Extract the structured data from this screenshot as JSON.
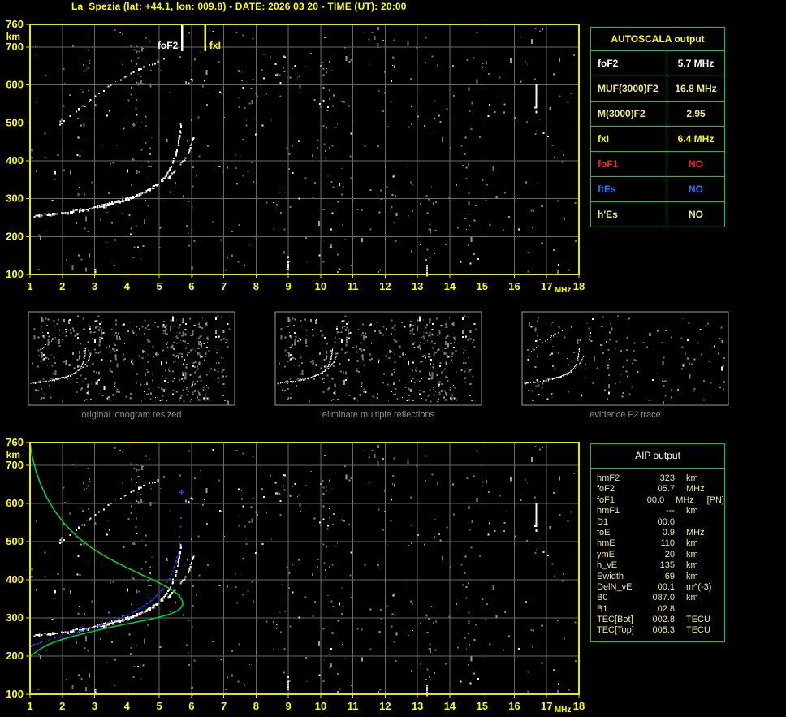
{
  "title": "La_Spezia (lat: +44.1, lon: 009.8) - DATE: 2026 03 20 - TIME (UT): 20:00",
  "colors": {
    "white": "#ffffff",
    "khaki": "#f0ea8e",
    "yellow": "#ffff00",
    "red": "#ff2222",
    "blue": "#2277ff",
    "frame_yellow": "#e8e800",
    "grid_gray": "#6a6a6a",
    "table_green": "#00cc44",
    "caption_gray": "#8f8f8f",
    "trace_white": "#ffffff",
    "profile_green": "#00cc33",
    "restored_blue": "#2a3cff"
  },
  "autoscala": {
    "header": "AUTOSCALA output",
    "rows": [
      {
        "label": "foF2",
        "value": "5.7 MHz",
        "color": "white"
      },
      {
        "label": "MUF(3000)F2",
        "value": "16.8 MHz",
        "color": "khaki"
      },
      {
        "label": "M(3000)F2",
        "value": "2.95",
        "color": "khaki"
      },
      {
        "label": "fxI",
        "value": "6.4 MHz",
        "color": "yellow"
      },
      {
        "label": "foF1",
        "value": "NO",
        "color": "red"
      },
      {
        "label": "ftEs",
        "value": "NO",
        "color": "blue"
      },
      {
        "label": "h'Es",
        "value": "NO",
        "color": "khaki"
      }
    ]
  },
  "aip": {
    "header": "AIP output",
    "rows": [
      {
        "label": "hmF2",
        "value": "323",
        "unit": "km",
        "extra": ""
      },
      {
        "label": "foF2",
        "value": "05.7",
        "unit": "MHz",
        "extra": ""
      },
      {
        "label": "foF1",
        "value": "00.0",
        "unit": "MHz",
        "extra": "[PN]"
      },
      {
        "label": "hmF1",
        "value": "---",
        "unit": "km",
        "extra": ""
      },
      {
        "label": "D1",
        "value": "00.0",
        "unit": "",
        "extra": ""
      },
      {
        "label": "foE",
        "value": "0.9",
        "unit": "MHz",
        "extra": ""
      },
      {
        "label": "hmE",
        "value": "110",
        "unit": "km",
        "extra": ""
      },
      {
        "label": "ymE",
        "value": "20",
        "unit": "km",
        "extra": ""
      },
      {
        "label": "h_vE",
        "value": "135",
        "unit": "km",
        "extra": ""
      },
      {
        "label": "Ewidth",
        "value": "69",
        "unit": "km",
        "extra": ""
      },
      {
        "label": "DelN_vE",
        "value": "00.1",
        "unit": "m^(-3)",
        "extra": ""
      },
      {
        "label": "B0",
        "value": "087.0",
        "unit": "km",
        "extra": ""
      },
      {
        "label": "B1",
        "value": "02.8",
        "unit": "",
        "extra": ""
      },
      {
        "label": "TEC[Bot]",
        "value": "002.8",
        "unit": "TECU",
        "extra": ""
      },
      {
        "label": "TEC[Top]",
        "value": "005.3",
        "unit": "TECU",
        "extra": ""
      }
    ]
  },
  "thumbnails": {
    "items": [
      {
        "caption": "original ionogram resized",
        "noise_count": 520,
        "seed": 31,
        "hop2": "full"
      },
      {
        "caption": "eliminate multiple reflections",
        "noise_count": 470,
        "seed": 31,
        "hop2": "partial"
      },
      {
        "caption": "evidence F2 trace",
        "noise_count": 170,
        "seed": 77,
        "hop2": "full"
      }
    ]
  },
  "chart_data": [
    {
      "type": "scatter",
      "id": "top-ionogram",
      "title": "",
      "xlabel": "MHz",
      "ylabel": "km",
      "xlim": [
        1,
        18
      ],
      "ylim": [
        100,
        760
      ],
      "grid": true,
      "xticks": [
        1,
        2,
        3,
        4,
        5,
        6,
        7,
        8,
        9,
        10,
        11,
        12,
        13,
        14,
        15,
        16,
        17,
        18
      ],
      "yticks": [
        760,
        700,
        600,
        500,
        400,
        300,
        200,
        100
      ],
      "markers": [
        {
          "name": "foF2",
          "x": 5.71,
          "value_mhz": 5.7,
          "color": "#ffffff",
          "label_side": "left"
        },
        {
          "name": "fxI",
          "x": 6.43,
          "value_mhz": 6.4,
          "color": "#ffff00",
          "label_side": "right"
        }
      ],
      "series": [
        {
          "name": "F2-trace-O-mode",
          "role": "o",
          "color": "#ffffff",
          "points": [
            [
              1.12,
              255
            ],
            [
              1.5,
              260
            ],
            [
              2.0,
              265
            ],
            [
              2.5,
              271
            ],
            [
              3.0,
              278
            ],
            [
              3.5,
              287
            ],
            [
              3.9,
              297
            ],
            [
              4.3,
              310
            ],
            [
              4.65,
              325
            ],
            [
              4.95,
              343
            ],
            [
              5.2,
              365
            ],
            [
              5.38,
              392
            ],
            [
              5.5,
              420
            ],
            [
              5.58,
              450
            ],
            [
              5.63,
              480
            ],
            [
              5.66,
              510
            ]
          ]
        },
        {
          "name": "F2-trace-X-mode",
          "role": "x",
          "color": "#ffffff",
          "points": [
            [
              3.0,
              283
            ],
            [
              3.5,
              292
            ],
            [
              4.0,
              302
            ],
            [
              4.4,
              314
            ],
            [
              4.75,
              328
            ],
            [
              5.05,
              344
            ],
            [
              5.3,
              362
            ],
            [
              5.55,
              383
            ],
            [
              5.75,
              405
            ],
            [
              5.9,
              428
            ],
            [
              6.0,
              450
            ],
            [
              6.07,
              468
            ]
          ]
        },
        {
          "name": "second-hop-trace",
          "role": "hop2",
          "color": "#ffffff",
          "points": [
            [
              1.9,
              498
            ],
            [
              2.35,
              530
            ],
            [
              2.8,
              560
            ],
            [
              3.25,
              588
            ],
            [
              3.7,
              612
            ],
            [
              4.1,
              632
            ],
            [
              4.5,
              648
            ],
            [
              4.85,
              660
            ],
            [
              5.2,
              672
            ]
          ]
        }
      ],
      "streaks": [
        {
          "x": 16.68,
          "km": [
            528,
            602
          ],
          "color": "#f5f5f5"
        },
        {
          "x": 9.0,
          "km": [
            102,
            148
          ],
          "color": "#e8e8e8"
        },
        {
          "x": 13.3,
          "km": [
            100,
            126
          ],
          "color": "#d8d8d8"
        },
        {
          "x": 6.02,
          "km": [
            100,
            120
          ],
          "color": "#e8e8e8"
        },
        {
          "x": 3.02,
          "km": [
            100,
            115
          ],
          "color": "#ffffff"
        },
        {
          "x": 1.06,
          "km": [
            404,
            430
          ],
          "color": "#bbbbbb"
        }
      ],
      "noise": {
        "seed": 1337,
        "count": 560
      }
    },
    {
      "type": "scatter",
      "id": "bottom-ionogram",
      "title": "",
      "xlabel": "MHz",
      "ylabel": "km",
      "xlim": [
        1,
        18
      ],
      "ylim": [
        100,
        760
      ],
      "grid": true,
      "xticks": [
        1,
        2,
        3,
        4,
        5,
        6,
        7,
        8,
        9,
        10,
        11,
        12,
        13,
        14,
        15,
        16,
        17,
        18
      ],
      "yticks": [
        760,
        700,
        600,
        500,
        400,
        300,
        200,
        100
      ],
      "markers": [],
      "series": [
        {
          "name": "F2-trace-O-mode",
          "role": "o",
          "color": "#ffffff",
          "points": [
            [
              1.12,
              255
            ],
            [
              1.5,
              260
            ],
            [
              2.0,
              265
            ],
            [
              2.5,
              271
            ],
            [
              3.0,
              278
            ],
            [
              3.5,
              287
            ],
            [
              3.9,
              297
            ],
            [
              4.3,
              310
            ],
            [
              4.65,
              325
            ],
            [
              4.95,
              343
            ],
            [
              5.2,
              365
            ],
            [
              5.38,
              392
            ],
            [
              5.5,
              420
            ],
            [
              5.58,
              450
            ],
            [
              5.63,
              480
            ],
            [
              5.66,
              510
            ]
          ]
        },
        {
          "name": "F2-trace-X-mode",
          "role": "x",
          "color": "#ffffff",
          "points": [
            [
              3.0,
              283
            ],
            [
              3.5,
              292
            ],
            [
              4.0,
              302
            ],
            [
              4.4,
              314
            ],
            [
              4.75,
              328
            ],
            [
              5.05,
              344
            ],
            [
              5.3,
              362
            ],
            [
              5.55,
              383
            ],
            [
              5.75,
              405
            ],
            [
              5.9,
              428
            ],
            [
              6.0,
              450
            ],
            [
              6.07,
              468
            ]
          ]
        },
        {
          "name": "second-hop-trace",
          "role": "hop2",
          "color": "#ffffff",
          "points": [
            [
              1.9,
              498
            ],
            [
              2.35,
              530
            ],
            [
              2.8,
              560
            ],
            [
              3.25,
              588
            ],
            [
              3.7,
              612
            ],
            [
              4.1,
              632
            ],
            [
              4.5,
              648
            ],
            [
              4.85,
              660
            ],
            [
              5.2,
              672
            ]
          ]
        },
        {
          "name": "restored-F2-trace",
          "role": "restored",
          "color": "#2a3cff",
          "points": [
            [
              1.0,
              228
            ],
            [
              1.5,
              242
            ],
            [
              2.0,
              254
            ],
            [
              2.5,
              266
            ],
            [
              3.0,
              278
            ],
            [
              3.45,
              291
            ],
            [
              3.85,
              304
            ],
            [
              4.2,
              318
            ],
            [
              4.55,
              335
            ],
            [
              4.85,
              355
            ],
            [
              5.1,
              378
            ],
            [
              5.28,
              402
            ],
            [
              5.42,
              428
            ],
            [
              5.52,
              455
            ],
            [
              5.6,
              480
            ],
            [
              5.64,
              502
            ]
          ],
          "isolated": [
            [
              5.63,
              513
            ],
            [
              5.66,
              540
            ],
            [
              5.68,
              562
            ],
            [
              5.7,
              630
            ]
          ]
        },
        {
          "name": "electron-density-profile",
          "role": "profile",
          "color": "#00cc33",
          "points": [
            [
              1.0,
              758
            ],
            [
              1.07,
              722
            ],
            [
              1.18,
              686
            ],
            [
              1.33,
              650
            ],
            [
              1.52,
              615
            ],
            [
              1.77,
              580
            ],
            [
              2.08,
              546
            ],
            [
              2.45,
              514
            ],
            [
              2.9,
              484
            ],
            [
              3.4,
              458
            ],
            [
              3.95,
              434
            ],
            [
              4.5,
              412
            ],
            [
              5.0,
              392
            ],
            [
              5.4,
              374
            ],
            [
              5.63,
              358
            ],
            [
              5.72,
              344
            ],
            [
              5.73,
              336
            ],
            [
              5.68,
              327
            ],
            [
              5.55,
              318
            ],
            [
              5.3,
              309
            ],
            [
              4.9,
              300
            ],
            [
              4.4,
              291
            ],
            [
              3.85,
              282
            ],
            [
              3.3,
              272
            ],
            [
              2.75,
              261
            ],
            [
              2.25,
              250
            ],
            [
              1.85,
              240
            ],
            [
              1.5,
              228
            ],
            [
              1.25,
              215
            ],
            [
              1.08,
              204
            ],
            [
              1.0,
              198
            ]
          ]
        }
      ],
      "streaks": [
        {
          "x": 16.68,
          "km": [
            528,
            602
          ],
          "color": "#f5f5f5"
        },
        {
          "x": 9.0,
          "km": [
            102,
            148
          ],
          "color": "#e8e8e8"
        },
        {
          "x": 13.3,
          "km": [
            100,
            126
          ],
          "color": "#d8d8d8"
        },
        {
          "x": 6.02,
          "km": [
            100,
            120
          ],
          "color": "#e8e8e8"
        },
        {
          "x": 3.02,
          "km": [
            100,
            115
          ],
          "color": "#ffffff"
        },
        {
          "x": 1.06,
          "km": [
            404,
            430
          ],
          "color": "#bbbbbb"
        }
      ],
      "noise": {
        "seed": 1337,
        "count": 560
      }
    }
  ]
}
